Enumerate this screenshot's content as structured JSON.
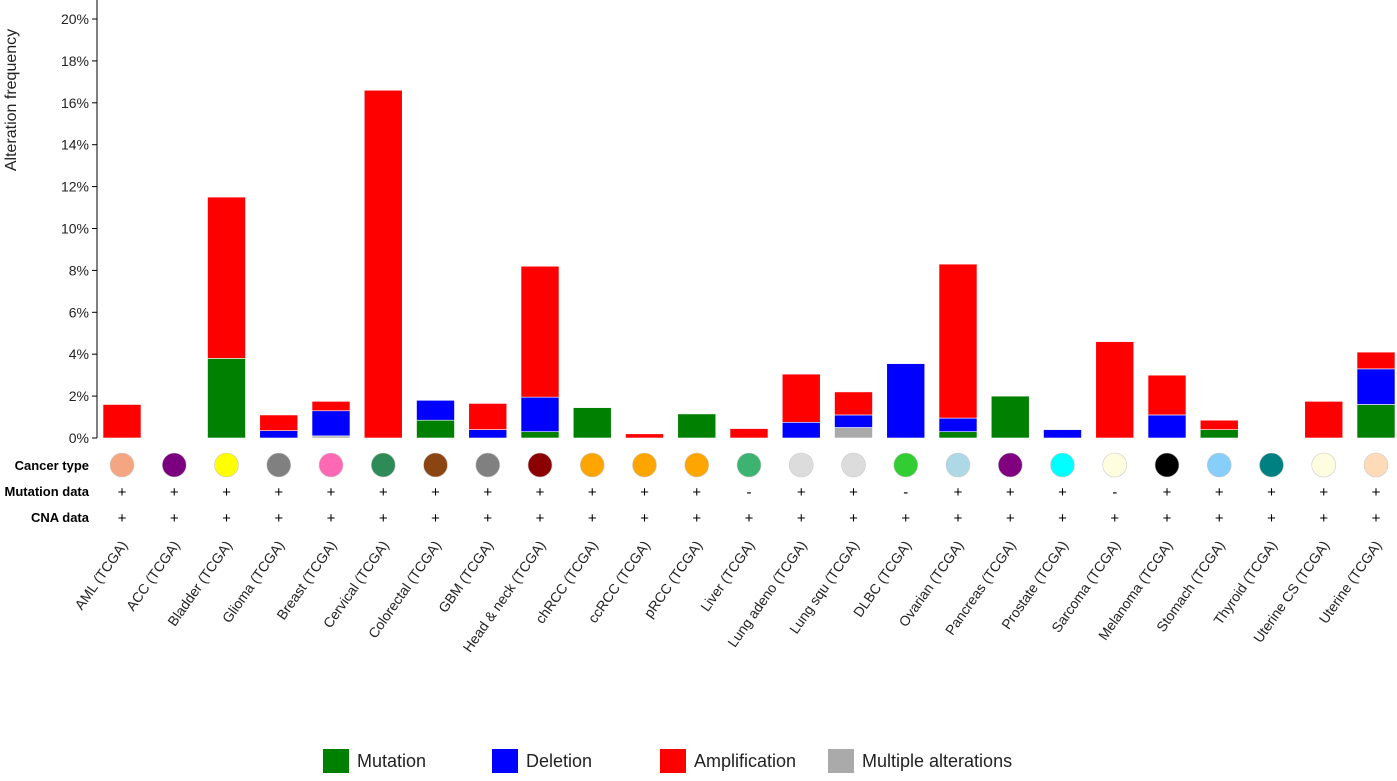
{
  "chart_data": {
    "type": "bar",
    "stacked": true,
    "ylabel": "Alteration frequency",
    "ylim": [
      0,
      20
    ],
    "yticks": [
      "0%",
      "2%",
      "4%",
      "6%",
      "8%",
      "10%",
      "12%",
      "14%",
      "16%",
      "18%",
      "20%"
    ],
    "categories": [
      "AML (TCGA)",
      "ACC (TCGA)",
      "Bladder (TCGA)",
      "Glioma (TCGA)",
      "Breast (TCGA)",
      "Cervical (TCGA)",
      "Colorectal (TCGA)",
      "GBM (TCGA)",
      "Head & neck (TCGA)",
      "chRCC (TCGA)",
      "ccRCC (TCGA)",
      "pRCC (TCGA)",
      "Liver (TCGA)",
      "Lung adeno (TCGA)",
      "Lung squ (TCGA)",
      "DLBC (TCGA)",
      "Ovarian (TCGA)",
      "Pancreas (TCGA)",
      "Prostate (TCGA)",
      "Sarcoma (TCGA)",
      "Melanoma (TCGA)",
      "Stomach (TCGA)",
      "Thyroid (TCGA)",
      "Uterine CS (TCGA)",
      "Uterine (TCGA)"
    ],
    "series": [
      {
        "name": "Multiple alterations",
        "color": "#aaaaaa",
        "values": [
          0,
          0,
          0,
          0,
          0.1,
          0,
          0,
          0,
          0,
          0,
          0,
          0,
          0,
          0,
          0.5,
          0,
          0,
          0,
          0,
          0,
          0,
          0,
          0,
          0,
          0
        ]
      },
      {
        "name": "Mutation",
        "color": "#008000",
        "values": [
          0,
          0,
          3.8,
          0,
          0,
          0,
          0.85,
          0,
          0.3,
          1.45,
          0,
          1.15,
          0,
          0,
          0,
          0,
          0.3,
          2.0,
          0,
          0,
          0,
          0.4,
          0,
          0,
          1.6
        ]
      },
      {
        "name": "Deletion",
        "color": "#0000ff",
        "values": [
          0,
          0,
          0,
          0.35,
          1.2,
          0,
          0.95,
          0.4,
          1.65,
          0,
          0,
          0,
          0,
          0.75,
          0.6,
          3.55,
          0.65,
          0,
          0.4,
          0,
          1.1,
          0,
          0,
          0,
          1.7
        ]
      },
      {
        "name": "Amplification",
        "color": "#ff0000",
        "values": [
          1.6,
          0,
          7.7,
          0.75,
          0.45,
          16.6,
          0,
          1.25,
          6.25,
          0,
          0.2,
          0,
          0.45,
          2.3,
          1.1,
          0,
          7.35,
          0,
          0,
          4.6,
          1.9,
          0.45,
          0,
          1.75,
          0.8
        ]
      }
    ],
    "legend": {
      "placement": "bottom-center",
      "order": [
        "Mutation",
        "Deletion",
        "Amplification",
        "Multiple alterations"
      ]
    },
    "grid": false
  },
  "tracks": {
    "cancer_type_label": "Cancer type",
    "mutation_label": "Mutation data",
    "cna_label": "CNA data",
    "cancer_type_colors": [
      "#f4a582",
      "#7b0080",
      "#ffff00",
      "#808080",
      "#ff69b4",
      "#2e8b57",
      "#8b4513",
      "#808080",
      "#8b0000",
      "#ffa500",
      "#ffa500",
      "#ffa500",
      "#3cb371",
      "#dcdcdc",
      "#dcdcdc",
      "#32cd32",
      "#add8e6",
      "#800080",
      "#00ffff",
      "#fffde0",
      "#000000",
      "#87cefa",
      "#008080",
      "#fffde0",
      "#ffdab9"
    ],
    "mutation_flags": [
      "+",
      "+",
      "+",
      "+",
      "+",
      "+",
      "+",
      "+",
      "+",
      "+",
      "+",
      "+",
      "-",
      "+",
      "+",
      "-",
      "+",
      "+",
      "+",
      "-",
      "+",
      "+",
      "+",
      "+",
      "+"
    ],
    "cna_flags": [
      "+",
      "+",
      "+",
      "+",
      "+",
      "+",
      "+",
      "+",
      "+",
      "+",
      "+",
      "+",
      "+",
      "+",
      "+",
      "+",
      "+",
      "+",
      "+",
      "+",
      "+",
      "+",
      "+",
      "+",
      "+"
    ]
  }
}
